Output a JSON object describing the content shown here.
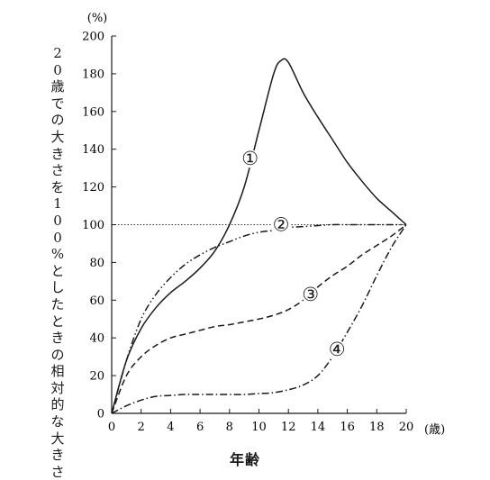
{
  "chart_data": {
    "type": "line",
    "y_unit": "(%)",
    "x_unit": "(歳)",
    "ylabel": "20歳での大きさを100%としたときの相対的な大きさ",
    "xlabel": "年齢",
    "xlim": [
      0,
      20
    ],
    "ylim": [
      0,
      200
    ],
    "x_ticks": [
      0,
      2,
      4,
      6,
      8,
      10,
      12,
      14,
      16,
      18,
      20
    ],
    "y_ticks": [
      0,
      20,
      40,
      60,
      80,
      100,
      120,
      140,
      160,
      180,
      200
    ],
    "reference_line": {
      "y": 100
    },
    "series": [
      {
        "name": "①",
        "style": "solid",
        "x": [
          0,
          1,
          2,
          3,
          4,
          5,
          6,
          7,
          8,
          9,
          10,
          11,
          11.5,
          12,
          13,
          14,
          15,
          16,
          17,
          18,
          19,
          20
        ],
        "y": [
          0,
          28,
          45,
          56,
          64,
          70,
          77,
          86,
          100,
          120,
          150,
          180,
          187,
          186,
          170,
          157,
          145,
          133,
          123,
          114,
          107,
          100
        ],
        "label_pos": [
          9.4,
          135
        ]
      },
      {
        "name": "②",
        "style": "dashdotdot",
        "x": [
          0,
          1,
          2,
          3,
          4,
          5,
          6,
          7,
          8,
          9,
          10,
          11,
          12,
          13,
          14,
          15,
          16,
          17,
          18,
          19,
          20
        ],
        "y": [
          0,
          28,
          50,
          63,
          72,
          79,
          84,
          88,
          91,
          94,
          96,
          97,
          98.5,
          99,
          99.5,
          100,
          100,
          100,
          100,
          100,
          100
        ],
        "label_pos": [
          11.5,
          100
        ]
      },
      {
        "name": "③",
        "style": "dashed",
        "x": [
          0,
          1,
          2,
          3,
          4,
          5,
          6,
          7,
          8,
          9,
          10,
          11,
          12,
          13,
          14,
          15,
          16,
          17,
          18,
          19,
          20
        ],
        "y": [
          0,
          20,
          30,
          36,
          40,
          42,
          44,
          46,
          47,
          48.5,
          50,
          52,
          55,
          60,
          67,
          73,
          78,
          84,
          89,
          94,
          100
        ],
        "label_pos": [
          13.5,
          63
        ]
      },
      {
        "name": "④",
        "style": "dashdot",
        "x": [
          0,
          1,
          2,
          3,
          4,
          5,
          6,
          7,
          8,
          9,
          10,
          11,
          12,
          13,
          14,
          15,
          16,
          17,
          18,
          19,
          20
        ],
        "y": [
          0,
          4,
          7,
          9,
          9.5,
          10,
          10,
          10,
          10,
          10,
          10.5,
          11,
          12.5,
          15,
          20,
          30,
          43,
          57,
          73,
          88,
          100
        ],
        "label_pos": [
          15.3,
          34
        ]
      }
    ]
  }
}
